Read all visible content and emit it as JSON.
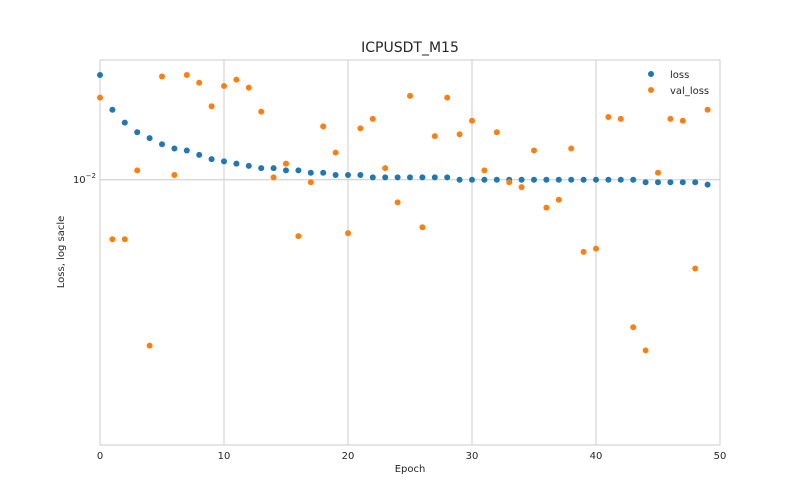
{
  "chart_data": {
    "type": "scatter",
    "title": "ICPUSDT_M15",
    "xlabel": "Epoch",
    "ylabel": "Loss, log sacle",
    "xlim": [
      0,
      50
    ],
    "ylim": [
      0.0033,
      0.0165
    ],
    "yscale": "log",
    "x_ticks": [
      0,
      10,
      20,
      30,
      40,
      50
    ],
    "y_ticks": [
      {
        "value": 0.01,
        "label": "10^-2",
        "base": "10",
        "exp": "−2"
      }
    ],
    "grid": true,
    "legend_position": "top-right",
    "series": [
      {
        "name": "loss",
        "color": "#1f77b4",
        "x": [
          0,
          1,
          2,
          3,
          4,
          5,
          6,
          7,
          8,
          9,
          10,
          11,
          12,
          13,
          14,
          15,
          16,
          17,
          18,
          19,
          20,
          21,
          22,
          23,
          24,
          25,
          26,
          27,
          28,
          29,
          30,
          31,
          32,
          33,
          34,
          35,
          36,
          37,
          38,
          39,
          40,
          41,
          42,
          43,
          44,
          45,
          46,
          47,
          48,
          49
        ],
        "y": [
          0.0155,
          0.0134,
          0.0127,
          0.0122,
          0.0119,
          0.0116,
          0.0114,
          0.0113,
          0.0111,
          0.0109,
          0.0108,
          0.0107,
          0.0106,
          0.0105,
          0.0105,
          0.0104,
          0.0104,
          0.0103,
          0.0103,
          0.0102,
          0.0102,
          0.0102,
          0.0101,
          0.0101,
          0.0101,
          0.0101,
          0.0101,
          0.0101,
          0.0101,
          0.01,
          0.01,
          0.01,
          0.01,
          0.01,
          0.01,
          0.01,
          0.01,
          0.01,
          0.01,
          0.01,
          0.01,
          0.01,
          0.01,
          0.01,
          0.0099,
          0.0099,
          0.0099,
          0.0099,
          0.0099,
          0.0098
        ]
      },
      {
        "name": "val_loss",
        "color": "#ff7f0e",
        "x": [
          0,
          1,
          2,
          3,
          4,
          5,
          6,
          7,
          8,
          9,
          10,
          11,
          12,
          13,
          14,
          15,
          16,
          17,
          18,
          19,
          20,
          21,
          22,
          23,
          24,
          25,
          26,
          27,
          28,
          29,
          30,
          31,
          32,
          33,
          34,
          35,
          36,
          37,
          38,
          39,
          40,
          41,
          42,
          43,
          44,
          45,
          46,
          47,
          48,
          49
        ],
        "y": [
          0.0141,
          0.0078,
          0.0078,
          0.0104,
          0.005,
          0.0154,
          0.0102,
          0.0155,
          0.015,
          0.0136,
          0.0148,
          0.0152,
          0.0147,
          0.0133,
          0.0101,
          0.0107,
          0.0079,
          0.0099,
          0.0125,
          0.0112,
          0.008,
          0.0124,
          0.0129,
          0.0105,
          0.0091,
          0.0142,
          0.0082,
          0.012,
          0.0141,
          0.0121,
          0.0128,
          0.0104,
          0.0122,
          0.0099,
          0.0097,
          0.0113,
          0.0089,
          0.0092,
          0.0114,
          0.0074,
          0.0075,
          0.013,
          0.0129,
          0.0054,
          0.0049,
          0.0103,
          0.0129,
          0.0128,
          0.0069,
          0.0134
        ]
      }
    ]
  }
}
